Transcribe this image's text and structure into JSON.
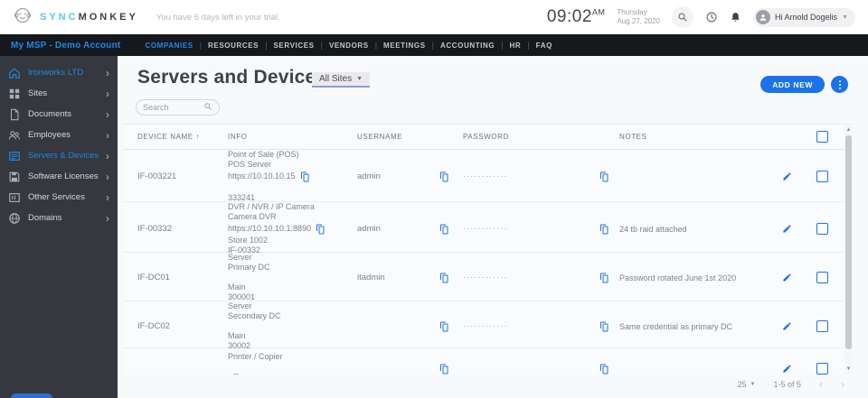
{
  "header": {
    "brand_sync": "SYNC",
    "brand_monkey": "MONKEY",
    "trial_text": "You have 6 days left in your trial.",
    "time": "09:02",
    "meridiem": "AM",
    "day": "Thursday",
    "date": "Aug 27, 2020",
    "user_greeting": "Hi Arnold Dogelis"
  },
  "navbar": {
    "account": "My MSP - Demo Account",
    "items": [
      "COMPANIES",
      "RESOURCES",
      "SERVICES",
      "VENDORS",
      "MEETINGS",
      "ACCOUNTING",
      "HR",
      "FAQ"
    ],
    "active_item": "COMPANIES"
  },
  "sidebar": {
    "items": [
      {
        "label": "Ironworks LTD",
        "icon": "home-icon",
        "active": true
      },
      {
        "label": "Sites",
        "icon": "sites-icon",
        "active": false
      },
      {
        "label": "Documents",
        "icon": "document-icon",
        "active": false
      },
      {
        "label": "Employees",
        "icon": "employees-icon",
        "active": false
      },
      {
        "label": "Servers & Devices",
        "icon": "servers-icon",
        "active": true
      },
      {
        "label": "Software Licenses",
        "icon": "licenses-icon",
        "active": false
      },
      {
        "label": "Other Services",
        "icon": "other-services-icon",
        "active": false
      },
      {
        "label": "Domains",
        "icon": "domains-icon",
        "active": false
      }
    ]
  },
  "main": {
    "title": "Servers and Devices",
    "site_filter": "All Sites",
    "search_placeholder": "Search",
    "add_new_label": "ADD NEW",
    "table": {
      "columns": [
        "DEVICE NAME",
        "INFO",
        "USERNAME",
        "PASSWORD",
        "NOTES"
      ],
      "sort_column": "DEVICE NAME",
      "sort_direction": "asc",
      "rows": [
        {
          "device_name": "IF-003221",
          "info_lines": [
            "Point of Sale (POS)",
            "POS Server",
            "https://10.10.10.15",
            "",
            "333241"
          ],
          "info_copy_on_line": 3,
          "username": "admin",
          "username_copy": true,
          "password_masked": "············",
          "password_copy": true,
          "notes": "",
          "height": 58
        },
        {
          "device_name": "IF-00332",
          "info_lines": [
            "DVR / NVR / IP Camera",
            "Camera DVR",
            "https://10.10.10.1:8890",
            "Store 1002",
            "IF-00332"
          ],
          "info_copy_on_line": 3,
          "username": "admin",
          "username_copy": true,
          "password_masked": "············",
          "password_copy": true,
          "notes": "24 tb raid attached",
          "height": 56
        },
        {
          "device_name": "IF-DC01",
          "info_lines": [
            "Server",
            "Primary DC",
            "",
            "Main",
            "300001"
          ],
          "info_copy_on_line": 0,
          "username": "itadmin",
          "username_copy": true,
          "password_masked": "············",
          "password_copy": true,
          "notes": "Password rotated June 1st 2020",
          "height": 54
        },
        {
          "device_name": "IF-DC02",
          "info_lines": [
            "Server",
            "Secondary DC",
            "",
            "Main",
            "30002"
          ],
          "info_copy_on_line": 0,
          "username": "",
          "username_copy": true,
          "password_masked": "············",
          "password_copy": true,
          "notes": "Same credential as primary DC",
          "height": 52
        },
        {
          "device_name": "",
          "info_lines": [
            "Printer / Copier",
            "",
            ""
          ],
          "info_copy_on_line": 3,
          "username": "",
          "username_copy": true,
          "password_masked": "",
          "password_copy": true,
          "notes": "",
          "height": 46
        }
      ]
    },
    "pagination": {
      "rows_per_page": "25",
      "range_label": "1-5 of 5"
    }
  },
  "colors": {
    "accent_blue": "#1a73e8",
    "link_blue": "#1e88e5",
    "logo_blue": "#5bc6ef",
    "nav_bg": "#16181d",
    "sidebar_bg": "#35383e",
    "content_bg": "#f8f9fa",
    "masked_dots": "#6d93cf"
  }
}
